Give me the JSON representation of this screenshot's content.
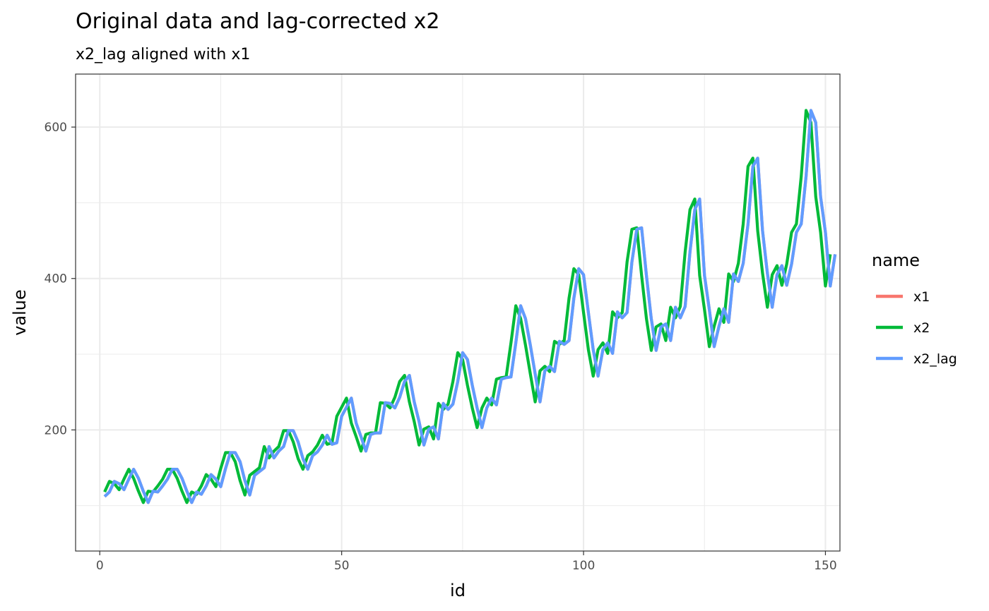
{
  "chart_data": {
    "type": "line",
    "title": "Original data and lag-corrected x2",
    "subtitle": "x2_lag aligned with x1",
    "xlabel": "id",
    "ylabel": "value",
    "xlim": [
      -5,
      153
    ],
    "ylim": [
      40,
      670
    ],
    "x_ticks": [
      0,
      50,
      100,
      150
    ],
    "y_ticks": [
      200,
      400,
      600
    ],
    "x_minor": [
      25,
      75,
      125
    ],
    "y_minor": [
      100,
      300,
      500
    ],
    "grid": true,
    "legend": {
      "title": "name",
      "position": "right",
      "items": [
        {
          "label": "x1",
          "color": "#F8766D"
        },
        {
          "label": "x2",
          "color": "#00BA38"
        },
        {
          "label": "x2_lag",
          "color": "#619CFF"
        }
      ]
    },
    "series": [
      {
        "name": "x1",
        "color": "#F8766D",
        "x_start": 1,
        "values": [
          112,
          118,
          132,
          129,
          121,
          135,
          148,
          136,
          119,
          104,
          119,
          118,
          126,
          135,
          148,
          148,
          136,
          119,
          104,
          118,
          115,
          126,
          141,
          135,
          125,
          149,
          170,
          170,
          158,
          133,
          114,
          140,
          145,
          150,
          178,
          163,
          172,
          178,
          199,
          199,
          184,
          162,
          148,
          166,
          171,
          180,
          193,
          181,
          183,
          218,
          230,
          242,
          209,
          191,
          172,
          194,
          196,
          196,
          236,
          235,
          229,
          243,
          264,
          272,
          237,
          211,
          180,
          201,
          204,
          188,
          235,
          227,
          234,
          264,
          302,
          293,
          259,
          229,
          203,
          229,
          242,
          233,
          267,
          269,
          270,
          315,
          364,
          347,
          312,
          274,
          237,
          278,
          284,
          277,
          317,
          313,
          318,
          374,
          413,
          405,
          355,
          306,
          271,
          306,
          315,
          301,
          356,
          348,
          355,
          422,
          465,
          467,
          404,
          347,
          305,
          336,
          340,
          318,
          362,
          348,
          363,
          435,
          491,
          505,
          404,
          359,
          310,
          337,
          360,
          342,
          406,
          396,
          420,
          472,
          548,
          559,
          463,
          407,
          362,
          405,
          417,
          391,
          419,
          461,
          472,
          535,
          622,
          606,
          508,
          461,
          390,
          432
        ]
      },
      {
        "name": "x2",
        "color": "#00BA38",
        "x_start": 1,
        "values": [
          118,
          132,
          129,
          121,
          135,
          148,
          136,
          119,
          104,
          119,
          118,
          126,
          135,
          148,
          148,
          136,
          119,
          104,
          118,
          115,
          126,
          141,
          135,
          125,
          149,
          170,
          170,
          158,
          133,
          114,
          140,
          145,
          150,
          178,
          163,
          172,
          178,
          199,
          199,
          184,
          162,
          148,
          166,
          171,
          180,
          193,
          181,
          183,
          218,
          230,
          242,
          209,
          191,
          172,
          194,
          196,
          196,
          236,
          235,
          229,
          243,
          264,
          272,
          237,
          211,
          180,
          201,
          204,
          188,
          235,
          227,
          234,
          264,
          302,
          293,
          259,
          229,
          203,
          229,
          242,
          233,
          267,
          269,
          270,
          315,
          364,
          347,
          312,
          274,
          237,
          278,
          284,
          277,
          317,
          313,
          318,
          374,
          413,
          405,
          355,
          306,
          271,
          306,
          315,
          301,
          356,
          348,
          355,
          422,
          465,
          467,
          404,
          347,
          305,
          336,
          340,
          318,
          362,
          348,
          363,
          435,
          491,
          505,
          404,
          359,
          310,
          337,
          360,
          342,
          406,
          396,
          420,
          472,
          548,
          559,
          463,
          407,
          362,
          405,
          417,
          391,
          419,
          461,
          472,
          535,
          622,
          606,
          508,
          461,
          390,
          432
        ]
      },
      {
        "name": "x2_lag",
        "color": "#619CFF",
        "x_start": 1,
        "values": [
          112,
          118,
          132,
          129,
          121,
          135,
          148,
          136,
          119,
          104,
          119,
          118,
          126,
          135,
          148,
          148,
          136,
          119,
          104,
          118,
          115,
          126,
          141,
          135,
          125,
          149,
          170,
          170,
          158,
          133,
          114,
          140,
          145,
          150,
          178,
          163,
          172,
          178,
          199,
          199,
          184,
          162,
          148,
          166,
          171,
          180,
          193,
          181,
          183,
          218,
          230,
          242,
          209,
          191,
          172,
          194,
          196,
          196,
          236,
          235,
          229,
          243,
          264,
          272,
          237,
          211,
          180,
          201,
          204,
          188,
          235,
          227,
          234,
          264,
          302,
          293,
          259,
          229,
          203,
          229,
          242,
          233,
          267,
          269,
          270,
          315,
          364,
          347,
          312,
          274,
          237,
          278,
          284,
          277,
          317,
          313,
          318,
          374,
          413,
          405,
          355,
          306,
          271,
          306,
          315,
          301,
          356,
          348,
          355,
          422,
          465,
          467,
          404,
          347,
          305,
          336,
          340,
          318,
          362,
          348,
          363,
          435,
          491,
          505,
          404,
          359,
          310,
          337,
          360,
          342,
          406,
          396,
          420,
          472,
          548,
          559,
          463,
          407,
          362,
          405,
          417,
          391,
          419,
          461,
          472,
          535,
          622,
          606,
          508,
          461,
          390,
          432
        ]
      }
    ]
  }
}
